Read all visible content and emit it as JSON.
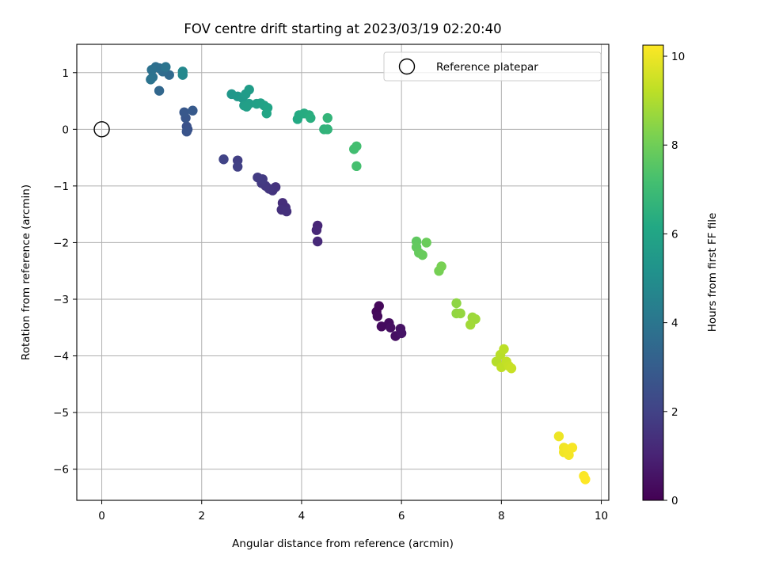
{
  "chart_data": {
    "type": "scatter",
    "title": "FOV centre drift starting at 2023/03/19 02:20:40",
    "xlabel": "Angular distance from reference (arcmin)",
    "ylabel": "Rotation from reference (arcmin)",
    "xlim": [
      -0.5,
      10.15
    ],
    "ylim": [
      -6.55,
      1.5
    ],
    "xticks": [
      0,
      2,
      4,
      6,
      8,
      10
    ],
    "yticks": [
      1,
      0,
      -1,
      -2,
      -3,
      -4,
      -5,
      -6
    ],
    "grid": true,
    "legend": {
      "label": "Reference platepar",
      "placement": "top-right"
    },
    "reference_point": {
      "x": 0,
      "y": 0,
      "marker": "open-circle"
    },
    "colorbar": {
      "label": "Hours from first FF file",
      "range": [
        0,
        10.25
      ],
      "ticks": [
        0,
        2,
        4,
        6,
        8,
        10
      ],
      "colormap": "viridis"
    },
    "series": [
      {
        "points": [
          {
            "x": 5.55,
            "y": -3.12,
            "c": 0.2
          },
          {
            "x": 5.5,
            "y": -3.22,
            "c": 0.2
          },
          {
            "x": 5.52,
            "y": -3.3,
            "c": 0.25
          },
          {
            "x": 5.6,
            "y": -3.48,
            "c": 0.3
          },
          {
            "x": 5.75,
            "y": -3.42,
            "c": 0.35
          },
          {
            "x": 5.78,
            "y": -3.5,
            "c": 0.4
          },
          {
            "x": 5.88,
            "y": -3.65,
            "c": 0.45
          },
          {
            "x": 5.98,
            "y": -3.52,
            "c": 0.5
          },
          {
            "x": 6.0,
            "y": -3.6,
            "c": 0.55
          },
          {
            "x": 4.32,
            "y": -1.7,
            "c": 1.1
          },
          {
            "x": 4.3,
            "y": -1.78,
            "c": 1.15
          },
          {
            "x": 4.32,
            "y": -1.98,
            "c": 1.2
          },
          {
            "x": 3.62,
            "y": -1.3,
            "c": 1.35
          },
          {
            "x": 3.68,
            "y": -1.38,
            "c": 1.35
          },
          {
            "x": 3.6,
            "y": -1.42,
            "c": 1.4
          },
          {
            "x": 3.7,
            "y": -1.45,
            "c": 1.45
          },
          {
            "x": 3.48,
            "y": -1.02,
            "c": 1.5
          },
          {
            "x": 3.42,
            "y": -1.08,
            "c": 1.55
          },
          {
            "x": 3.35,
            "y": -1.05,
            "c": 1.6
          },
          {
            "x": 3.28,
            "y": -1.0,
            "c": 1.65
          },
          {
            "x": 3.2,
            "y": -0.95,
            "c": 1.7
          },
          {
            "x": 3.22,
            "y": -0.88,
            "c": 1.75
          },
          {
            "x": 3.12,
            "y": -0.85,
            "c": 1.8
          },
          {
            "x": 2.72,
            "y": -0.55,
            "c": 1.9
          },
          {
            "x": 2.72,
            "y": -0.66,
            "c": 1.95
          },
          {
            "x": 2.44,
            "y": -0.53,
            "c": 2.05
          },
          {
            "x": 1.7,
            "y": 0.05,
            "c": 2.6
          },
          {
            "x": 1.72,
            "y": 0.0,
            "c": 2.6
          },
          {
            "x": 1.7,
            "y": -0.04,
            "c": 2.65
          },
          {
            "x": 1.68,
            "y": 0.2,
            "c": 2.75
          },
          {
            "x": 1.65,
            "y": 0.3,
            "c": 2.8
          },
          {
            "x": 1.82,
            "y": 0.33,
            "c": 2.9
          },
          {
            "x": 1.15,
            "y": 0.68,
            "c": 3.4
          },
          {
            "x": 1.35,
            "y": 0.96,
            "c": 3.5
          },
          {
            "x": 1.22,
            "y": 1.02,
            "c": 3.6
          },
          {
            "x": 1.15,
            "y": 1.08,
            "c": 3.7
          },
          {
            "x": 1.08,
            "y": 1.1,
            "c": 3.75
          },
          {
            "x": 1.0,
            "y": 1.05,
            "c": 3.8
          },
          {
            "x": 1.02,
            "y": 0.92,
            "c": 3.85
          },
          {
            "x": 0.98,
            "y": 0.88,
            "c": 3.9
          },
          {
            "x": 1.28,
            "y": 1.1,
            "c": 3.95
          },
          {
            "x": 1.62,
            "y": 0.96,
            "c": 4.7
          },
          {
            "x": 1.62,
            "y": 1.02,
            "c": 4.75
          },
          {
            "x": 2.6,
            "y": 0.62,
            "c": 5.4
          },
          {
            "x": 2.72,
            "y": 0.58,
            "c": 5.45
          },
          {
            "x": 2.82,
            "y": 0.55,
            "c": 5.5
          },
          {
            "x": 2.88,
            "y": 0.62,
            "c": 5.55
          },
          {
            "x": 2.95,
            "y": 0.7,
            "c": 5.6
          },
          {
            "x": 2.85,
            "y": 0.42,
            "c": 5.65
          },
          {
            "x": 2.95,
            "y": 0.45,
            "c": 5.7
          },
          {
            "x": 2.9,
            "y": 0.4,
            "c": 5.75
          },
          {
            "x": 3.1,
            "y": 0.45,
            "c": 5.8
          },
          {
            "x": 3.18,
            "y": 0.46,
            "c": 5.85
          },
          {
            "x": 3.25,
            "y": 0.42,
            "c": 5.9
          },
          {
            "x": 3.32,
            "y": 0.38,
            "c": 5.95
          },
          {
            "x": 3.3,
            "y": 0.28,
            "c": 6.0
          },
          {
            "x": 3.92,
            "y": 0.18,
            "c": 6.2
          },
          {
            "x": 3.95,
            "y": 0.25,
            "c": 6.25
          },
          {
            "x": 4.05,
            "y": 0.28,
            "c": 6.3
          },
          {
            "x": 4.15,
            "y": 0.25,
            "c": 6.35
          },
          {
            "x": 4.18,
            "y": 0.2,
            "c": 6.4
          },
          {
            "x": 4.45,
            "y": 0.0,
            "c": 6.6
          },
          {
            "x": 4.52,
            "y": 0.0,
            "c": 6.65
          },
          {
            "x": 4.52,
            "y": 0.2,
            "c": 6.7
          },
          {
            "x": 5.05,
            "y": -0.35,
            "c": 7.1
          },
          {
            "x": 5.1,
            "y": -0.3,
            "c": 7.15
          },
          {
            "x": 5.1,
            "y": -0.65,
            "c": 7.2
          },
          {
            "x": 6.3,
            "y": -1.98,
            "c": 7.7
          },
          {
            "x": 6.3,
            "y": -2.08,
            "c": 7.75
          },
          {
            "x": 6.35,
            "y": -2.18,
            "c": 7.8
          },
          {
            "x": 6.42,
            "y": -2.22,
            "c": 7.85
          },
          {
            "x": 6.5,
            "y": -2.0,
            "c": 7.9
          },
          {
            "x": 6.75,
            "y": -2.5,
            "c": 8.1
          },
          {
            "x": 6.8,
            "y": -2.42,
            "c": 8.15
          },
          {
            "x": 7.1,
            "y": -3.07,
            "c": 8.5
          },
          {
            "x": 7.1,
            "y": -3.25,
            "c": 8.55
          },
          {
            "x": 7.18,
            "y": -3.25,
            "c": 8.6
          },
          {
            "x": 7.42,
            "y": -3.32,
            "c": 8.7
          },
          {
            "x": 7.48,
            "y": -3.35,
            "c": 8.75
          },
          {
            "x": 7.38,
            "y": -3.45,
            "c": 8.8
          },
          {
            "x": 7.9,
            "y": -4.1,
            "c": 9.1
          },
          {
            "x": 7.98,
            "y": -3.98,
            "c": 9.15
          },
          {
            "x": 8.05,
            "y": -3.88,
            "c": 9.2
          },
          {
            "x": 8.0,
            "y": -4.2,
            "c": 9.25
          },
          {
            "x": 8.1,
            "y": -4.1,
            "c": 9.3
          },
          {
            "x": 8.15,
            "y": -4.18,
            "c": 9.35
          },
          {
            "x": 8.2,
            "y": -4.22,
            "c": 9.4
          },
          {
            "x": 9.15,
            "y": -5.42,
            "c": 10.0
          },
          {
            "x": 9.25,
            "y": -5.62,
            "c": 10.05
          },
          {
            "x": 9.25,
            "y": -5.7,
            "c": 10.05
          },
          {
            "x": 9.32,
            "y": -5.65,
            "c": 10.1
          },
          {
            "x": 9.35,
            "y": -5.75,
            "c": 10.1
          },
          {
            "x": 9.42,
            "y": -5.62,
            "c": 10.15
          },
          {
            "x": 9.65,
            "y": -6.12,
            "c": 10.2
          },
          {
            "x": 9.68,
            "y": -6.18,
            "c": 10.25
          }
        ]
      }
    ]
  }
}
